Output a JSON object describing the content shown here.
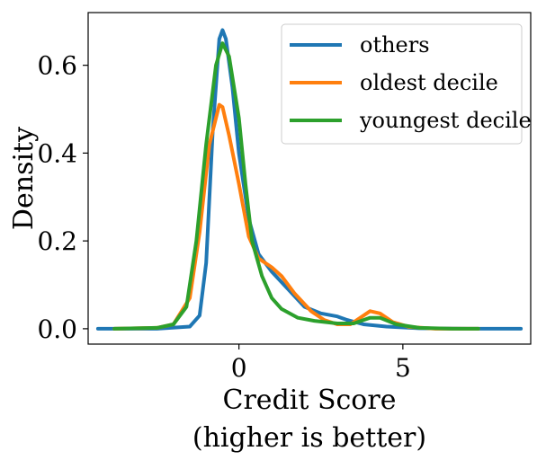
{
  "chart_data": {
    "type": "line",
    "xlabel": "Credit Score",
    "xlabel_line2": "(higher is better)",
    "ylabel": "Density",
    "xlim": [
      -4.6,
      8.9
    ],
    "ylim": [
      -0.035,
      0.72
    ],
    "x_ticks": [
      0,
      5
    ],
    "x_tick_labels": [
      "0",
      "5"
    ],
    "y_ticks": [
      0.0,
      0.2,
      0.4,
      0.6
    ],
    "y_tick_labels": [
      "0.0",
      "0.2",
      "0.4",
      "0.6"
    ],
    "grid": false,
    "legend_position": "top-right",
    "series": [
      {
        "name": "others",
        "color": "#1f77b4",
        "points": [
          [
            -4.3,
            0.0
          ],
          [
            -2.5,
            0.0
          ],
          [
            -1.5,
            0.005
          ],
          [
            -1.2,
            0.03
          ],
          [
            -1.0,
            0.15
          ],
          [
            -0.8,
            0.45
          ],
          [
            -0.6,
            0.66
          ],
          [
            -0.5,
            0.68
          ],
          [
            -0.4,
            0.66
          ],
          [
            -0.2,
            0.55
          ],
          [
            0.0,
            0.4
          ],
          [
            0.3,
            0.25
          ],
          [
            0.6,
            0.17
          ],
          [
            1.0,
            0.13
          ],
          [
            1.5,
            0.09
          ],
          [
            2.0,
            0.05
          ],
          [
            2.5,
            0.035
          ],
          [
            3.0,
            0.028
          ],
          [
            3.3,
            0.02
          ],
          [
            3.8,
            0.01
          ],
          [
            4.5,
            0.005
          ],
          [
            5.5,
            0.001
          ],
          [
            7.0,
            0.0
          ],
          [
            8.6,
            0.0
          ]
        ]
      },
      {
        "name": "oldest decile",
        "color": "#ff7f0e",
        "points": [
          [
            -3.8,
            0.0
          ],
          [
            -2.5,
            0.002
          ],
          [
            -2.0,
            0.01
          ],
          [
            -1.5,
            0.07
          ],
          [
            -1.2,
            0.22
          ],
          [
            -0.9,
            0.42
          ],
          [
            -0.6,
            0.51
          ],
          [
            -0.5,
            0.505
          ],
          [
            -0.3,
            0.44
          ],
          [
            0.0,
            0.33
          ],
          [
            0.3,
            0.21
          ],
          [
            0.6,
            0.16
          ],
          [
            1.0,
            0.14
          ],
          [
            1.3,
            0.12
          ],
          [
            1.7,
            0.08
          ],
          [
            2.2,
            0.04
          ],
          [
            2.6,
            0.02
          ],
          [
            3.0,
            0.01
          ],
          [
            3.4,
            0.01
          ],
          [
            3.7,
            0.025
          ],
          [
            4.0,
            0.04
          ],
          [
            4.3,
            0.035
          ],
          [
            4.7,
            0.015
          ],
          [
            5.2,
            0.004
          ],
          [
            6.0,
            0.0
          ],
          [
            7.3,
            0.0
          ]
        ]
      },
      {
        "name": "youngest decile",
        "color": "#2ca02c",
        "points": [
          [
            -3.8,
            0.0
          ],
          [
            -2.5,
            0.002
          ],
          [
            -2.0,
            0.01
          ],
          [
            -1.6,
            0.05
          ],
          [
            -1.3,
            0.2
          ],
          [
            -1.0,
            0.42
          ],
          [
            -0.7,
            0.6
          ],
          [
            -0.5,
            0.65
          ],
          [
            -0.3,
            0.62
          ],
          [
            0.0,
            0.48
          ],
          [
            0.2,
            0.33
          ],
          [
            0.4,
            0.2
          ],
          [
            0.7,
            0.12
          ],
          [
            1.0,
            0.07
          ],
          [
            1.3,
            0.045
          ],
          [
            1.8,
            0.025
          ],
          [
            2.3,
            0.018
          ],
          [
            3.0,
            0.012
          ],
          [
            3.5,
            0.012
          ],
          [
            4.0,
            0.025
          ],
          [
            4.3,
            0.025
          ],
          [
            4.8,
            0.01
          ],
          [
            5.5,
            0.002
          ],
          [
            6.5,
            0.0
          ],
          [
            7.3,
            0.0
          ]
        ]
      }
    ]
  }
}
